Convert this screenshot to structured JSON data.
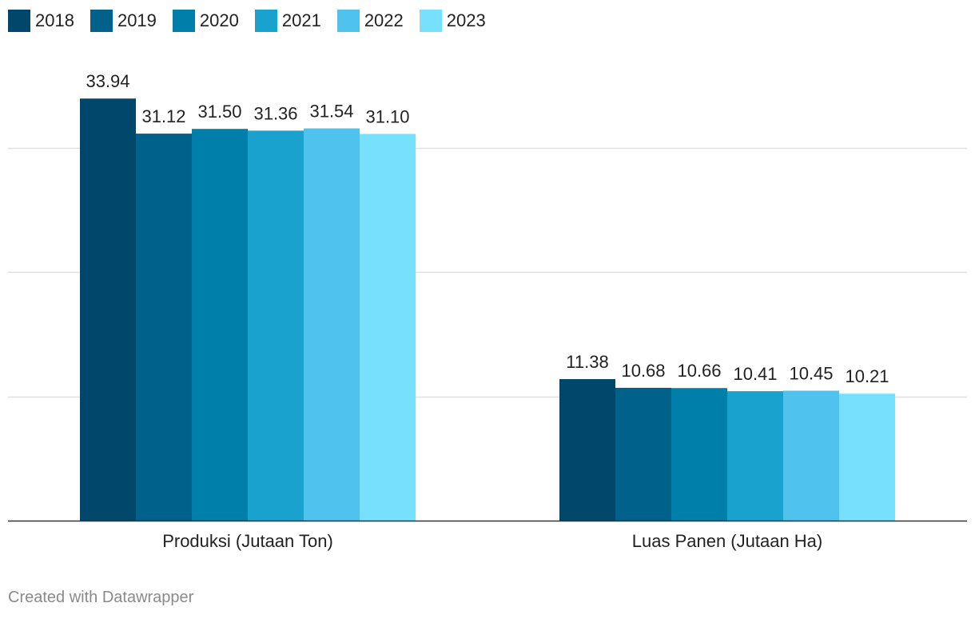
{
  "chart_data": {
    "type": "bar",
    "categories": [
      "Produksi (Jutaan Ton)",
      "Luas Panen (Jutaan Ha)"
    ],
    "series": [
      {
        "name": "2018",
        "color": "#00476b",
        "values": [
          33.94,
          11.38
        ]
      },
      {
        "name": "2019",
        "color": "#00618b",
        "values": [
          31.12,
          10.68
        ]
      },
      {
        "name": "2020",
        "color": "#007fab",
        "values": [
          31.5,
          10.66
        ]
      },
      {
        "name": "2021",
        "color": "#1aa2cf",
        "values": [
          31.36,
          10.41
        ]
      },
      {
        "name": "2022",
        "color": "#4fc3ee",
        "values": [
          31.54,
          10.45
        ]
      },
      {
        "name": "2023",
        "color": "#77e1fd",
        "values": [
          31.1,
          10.21
        ]
      }
    ],
    "ylim": [
      0,
      35
    ],
    "grid": true,
    "gridlines": [
      10,
      20,
      30
    ],
    "legend_position": "top-left",
    "value_labels": true
  },
  "footer": {
    "credit": "Created with Datawrapper"
  }
}
